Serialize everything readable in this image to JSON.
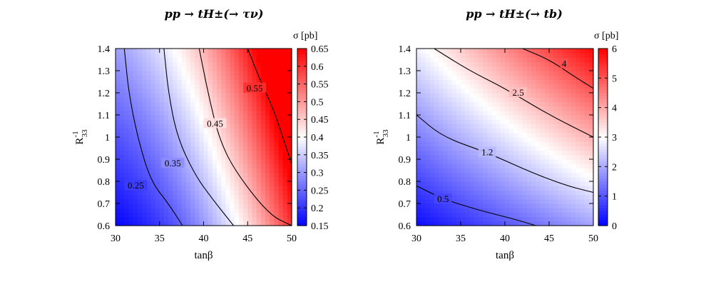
{
  "chart_data": [
    {
      "type": "heatmap",
      "title": "pp → tH±(→ τν)",
      "xlabel": "tanβ",
      "ylabel": "R",
      "ylabel_sup": "-1",
      "ylabel_sub": "33",
      "colorbar_title": "σ [pb]",
      "xlim": [
        30,
        50
      ],
      "ylim": [
        0.6,
        1.4
      ],
      "clim": [
        0.15,
        0.65
      ],
      "x_ticks": [
        "30",
        "35",
        "40",
        "45",
        "50"
      ],
      "y_ticks": [
        "0.6",
        "0.7",
        "0.8",
        "0.9",
        "1",
        "1.1",
        "1.2",
        "1.3",
        "1.4"
      ],
      "cb_ticks": [
        "0.15",
        "0.2",
        "0.25",
        "0.3",
        "0.35",
        "0.4",
        "0.45",
        "0.5",
        "0.55",
        "0.6",
        "0.65"
      ],
      "colors": {
        "low": "#0000ff",
        "mid": "#ffffff",
        "high": "#ff0000"
      },
      "contours": [
        {
          "level": "0.25",
          "points": [
            [
              31.0,
              1.4
            ],
            [
              31.5,
              1.2
            ],
            [
              32.5,
              1.0
            ],
            [
              34.0,
              0.8
            ],
            [
              36.0,
              0.7
            ],
            [
              37.6,
              0.6
            ]
          ],
          "label_at": [
            32.3,
            0.78
          ]
        },
        {
          "level": "0.35",
          "points": [
            [
              35.5,
              1.4
            ],
            [
              36.0,
              1.2
            ],
            [
              37.0,
              1.0
            ],
            [
              39.0,
              0.83
            ],
            [
              41.0,
              0.72
            ],
            [
              43.4,
              0.6
            ]
          ],
          "label_at": [
            36.5,
            0.88
          ]
        },
        {
          "level": "0.45",
          "points": [
            [
              39.5,
              1.4
            ],
            [
              40.5,
              1.2
            ],
            [
              41.7,
              1.0
            ],
            [
              43.5,
              0.85
            ],
            [
              47.4,
              0.65
            ],
            [
              50.0,
              0.6
            ]
          ],
          "label_at": [
            41.3,
            1.06
          ]
        },
        {
          "level": "0.55",
          "points": [
            [
              45.0,
              1.4
            ],
            [
              46.5,
              1.25
            ],
            [
              48.0,
              1.12
            ],
            [
              49.4,
              0.95
            ],
            [
              50.0,
              0.88
            ]
          ],
          "label_at": [
            45.8,
            1.22
          ]
        }
      ]
    },
    {
      "type": "heatmap",
      "title": "pp → tH±(→ tb)",
      "xlabel": "tanβ",
      "ylabel": "R",
      "ylabel_sup": "-1",
      "ylabel_sub": "33",
      "colorbar_title": "σ [pb]",
      "xlim": [
        30,
        50
      ],
      "ylim": [
        0.6,
        1.4
      ],
      "clim": [
        0,
        6
      ],
      "x_ticks": [
        "30",
        "35",
        "40",
        "45",
        "50"
      ],
      "y_ticks": [
        "0.6",
        "0.7",
        "0.8",
        "0.9",
        "1",
        "1.1",
        "1.2",
        "1.3",
        "1.4"
      ],
      "cb_ticks": [
        "0",
        "1",
        "2",
        "3",
        "4",
        "5",
        "6"
      ],
      "colors": {
        "low": "#0000ff",
        "mid": "#ffffff",
        "high": "#ff0000"
      },
      "contours": [
        {
          "level": "0.5",
          "points": [
            [
              30.0,
              0.78
            ],
            [
              33.0,
              0.72
            ],
            [
              37.0,
              0.67
            ],
            [
              41.0,
              0.63
            ],
            [
              43.5,
              0.6
            ]
          ],
          "label_at": [
            33.0,
            0.72
          ]
        },
        {
          "level": "1.2",
          "points": [
            [
              30.0,
              1.1
            ],
            [
              33.0,
              1.0
            ],
            [
              38.0,
              0.93
            ],
            [
              43.0,
              0.84
            ],
            [
              47.0,
              0.78
            ],
            [
              50.0,
              0.75
            ]
          ],
          "label_at": [
            38.0,
            0.93
          ]
        },
        {
          "level": "2.5",
          "points": [
            [
              32.0,
              1.4
            ],
            [
              36.0,
              1.3
            ],
            [
              40.0,
              1.22
            ],
            [
              45.0,
              1.1
            ],
            [
              50.0,
              1.0
            ]
          ],
          "label_at": [
            41.5,
            1.2
          ]
        },
        {
          "level": "4",
          "points": [
            [
              42.0,
              1.4
            ],
            [
              45.0,
              1.35
            ],
            [
              48.0,
              1.27
            ],
            [
              50.0,
              1.22
            ]
          ],
          "label_at": [
            46.7,
            1.33
          ]
        }
      ]
    }
  ]
}
